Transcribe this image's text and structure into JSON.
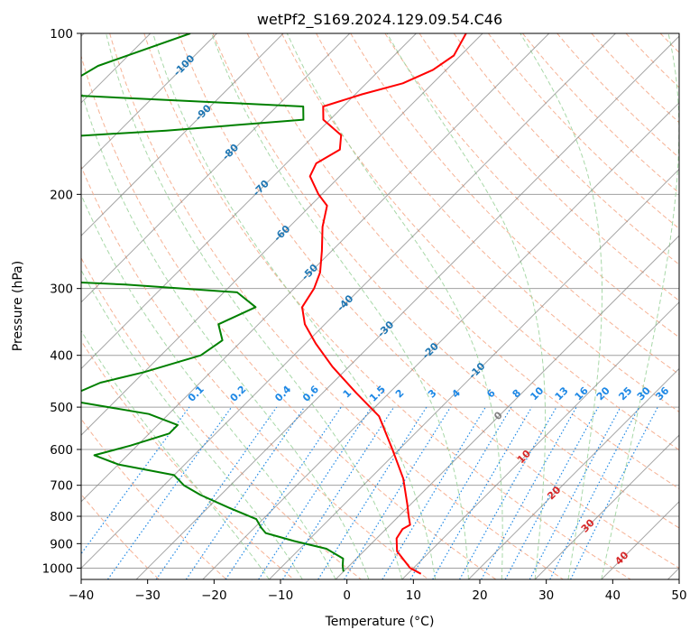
{
  "chart_data": {
    "type": "line",
    "subtype": "skew-t log-p diagram",
    "title": "wetPf2_S169.2024.129.09.54.C46",
    "xlabel": "Temperature (°C)",
    "ylabel": "Pressure (hPa)",
    "xlim": [
      -40,
      50
    ],
    "ylim": [
      1050,
      100
    ],
    "y_scale": "log",
    "x_ticks": [
      -40,
      -30,
      -20,
      -10,
      0,
      10,
      20,
      30,
      40,
      50
    ],
    "y_ticks": [
      100,
      200,
      300,
      400,
      500,
      600,
      700,
      800,
      900,
      1000
    ],
    "grid": true,
    "skew_reference_pressure": 1000,
    "colors": {
      "temperature": "#ff0000",
      "dewpoint": "#008000",
      "isotherm": "#808080",
      "isobar": "#a0a0a0",
      "dry_adiabat": "#f4a582",
      "moist_adiabat": "#9fd49f",
      "mixing_ratio": "#1e88e5",
      "isotherm_labels": "#1f77b4",
      "warm_isotherm_labels": "#d62728",
      "zero_label": "#808080"
    },
    "series": [
      {
        "style": "solid",
        "points": [
          {
            "p": 100,
            "t": -62.5
          },
          {
            "p": 110,
            "t": -61.0
          },
          {
            "p": 117,
            "t": -62.0
          },
          {
            "p": 124,
            "t": -64.5
          },
          {
            "p": 130,
            "t": -69.0
          },
          {
            "p": 137,
            "t": -73.0
          },
          {
            "p": 145,
            "t": -71.0
          },
          {
            "p": 155,
            "t": -66.0
          },
          {
            "p": 165,
            "t": -64.0
          },
          {
            "p": 175,
            "t": -65.5
          },
          {
            "p": 185,
            "t": -64.5
          },
          {
            "p": 200,
            "t": -60.5
          },
          {
            "p": 210,
            "t": -57.5
          },
          {
            "p": 230,
            "t": -55.0
          },
          {
            "p": 255,
            "t": -51.5
          },
          {
            "p": 280,
            "t": -48.5
          },
          {
            "p": 300,
            "t": -47.0
          },
          {
            "p": 325,
            "t": -46.0
          },
          {
            "p": 350,
            "t": -43.0
          },
          {
            "p": 380,
            "t": -38.5
          },
          {
            "p": 420,
            "t": -32.5
          },
          {
            "p": 470,
            "t": -25.0
          },
          {
            "p": 520,
            "t": -18.0
          },
          {
            "p": 600,
            "t": -11.0
          },
          {
            "p": 680,
            "t": -5.0
          },
          {
            "p": 760,
            "t": -0.5
          },
          {
            "p": 800,
            "t": 1.5
          },
          {
            "p": 830,
            "t": 3.0
          },
          {
            "p": 845,
            "t": 2.5
          },
          {
            "p": 880,
            "t": 3.0
          },
          {
            "p": 930,
            "t": 5.0
          },
          {
            "p": 1000,
            "t": 9.5
          },
          {
            "p": 1025,
            "t": 12.0
          }
        ]
      },
      {
        "style": "solid",
        "points": [
          {
            "p": 100,
            "t": -104.0
          },
          {
            "p": 115,
            "t": -113.0
          },
          {
            "p": 130,
            "t": -116.0
          },
          {
            "p": 137,
            "t": -76.0
          },
          {
            "p": 145,
            "t": -74.0
          },
          {
            "p": 152,
            "t": -93.0
          },
          {
            "p": 157,
            "t": -111.0
          },
          {
            "p": 172,
            "t": -109.0
          },
          {
            "p": 200,
            "t": -103.0
          },
          {
            "p": 230,
            "t": -97.0
          },
          {
            "p": 260,
            "t": -92.0
          },
          {
            "p": 290,
            "t": -89.0
          },
          {
            "p": 295,
            "t": -76.0
          },
          {
            "p": 305,
            "t": -58.0
          },
          {
            "p": 325,
            "t": -53.0
          },
          {
            "p": 350,
            "t": -56.0
          },
          {
            "p": 375,
            "t": -53.0
          },
          {
            "p": 400,
            "t": -54.0
          },
          {
            "p": 430,
            "t": -60.0
          },
          {
            "p": 450,
            "t": -65.0
          },
          {
            "p": 470,
            "t": -67.0
          },
          {
            "p": 490,
            "t": -65.0
          },
          {
            "p": 515,
            "t": -53.0
          },
          {
            "p": 540,
            "t": -47.0
          },
          {
            "p": 560,
            "t": -47.0
          },
          {
            "p": 590,
            "t": -51.0
          },
          {
            "p": 615,
            "t": -55.0
          },
          {
            "p": 640,
            "t": -50.0
          },
          {
            "p": 670,
            "t": -40.0
          },
          {
            "p": 700,
            "t": -37.0
          },
          {
            "p": 730,
            "t": -33.0
          },
          {
            "p": 770,
            "t": -27.0
          },
          {
            "p": 810,
            "t": -21.0
          },
          {
            "p": 840,
            "t": -19.0
          },
          {
            "p": 860,
            "t": -17.5
          },
          {
            "p": 890,
            "t": -12.0
          },
          {
            "p": 920,
            "t": -6.0
          },
          {
            "p": 960,
            "t": -2.0
          },
          {
            "p": 990,
            "t": -1.0
          },
          {
            "p": 1015,
            "t": 0.0
          }
        ]
      }
    ],
    "isotherm_labels": [
      "-100",
      "-90",
      "-80",
      "-70",
      "-60",
      "-50",
      "-40",
      "-30",
      "-20",
      "-10",
      "0",
      "10",
      "20",
      "30",
      "40"
    ],
    "mixing_ratio_labels": [
      "0.1",
      "0.2",
      "0.4",
      "0.6",
      "1",
      "1.5",
      "2",
      "3",
      "4",
      "6",
      "8",
      "10",
      "13",
      "16",
      "20",
      "25",
      "30",
      "36"
    ]
  }
}
